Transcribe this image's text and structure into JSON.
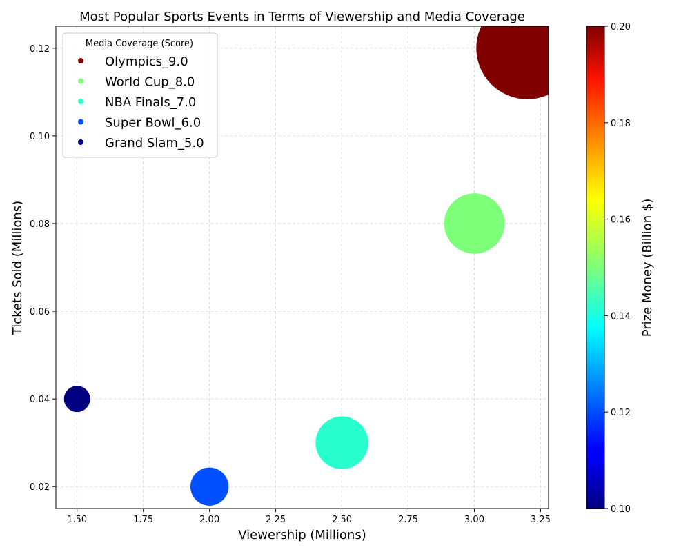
{
  "chart_data": {
    "type": "scatter",
    "title": "Most Popular Sports Events in Terms of Viewership and Media Coverage",
    "xlabel": "Viewership (Millions)",
    "ylabel": "Tickets Sold (Millions)",
    "xlim": [
      1.42,
      3.28
    ],
    "ylim": [
      0.015,
      0.125
    ],
    "xticks": [
      "1.50",
      "1.75",
      "2.00",
      "2.25",
      "2.50",
      "2.75",
      "3.00",
      "3.25"
    ],
    "xtick_values": [
      1.5,
      1.75,
      2.0,
      2.25,
      2.5,
      2.75,
      3.0,
      3.25
    ],
    "yticks": [
      "0.02",
      "0.04",
      "0.06",
      "0.08",
      "0.10",
      "0.12"
    ],
    "ytick_values": [
      0.02,
      0.04,
      0.06,
      0.08,
      0.1,
      0.12
    ],
    "grid": true,
    "legend": {
      "title": "Media Coverage (Score)",
      "placement": "top-left",
      "entries": [
        "Olympics_9.0",
        "World Cup_8.0",
        "NBA Finals_7.0",
        "Super Bowl_6.0",
        "Grand Slam_5.0"
      ]
    },
    "colorbar": {
      "label": "Prize Money (Billion $)",
      "range": [
        0.1,
        0.2
      ],
      "ticks": [
        "0.10",
        "0.12",
        "0.14",
        "0.16",
        "0.18",
        "0.20"
      ],
      "tick_values": [
        0.1,
        0.12,
        0.14,
        0.16,
        0.18,
        0.2
      ],
      "colormap": "jet"
    },
    "points": [
      {
        "event": "Olympics",
        "x": 3.2,
        "y": 0.12,
        "media_score": 9.0,
        "prize_money": 0.2,
        "color": "#800000"
      },
      {
        "event": "World Cup",
        "x": 3.0,
        "y": 0.08,
        "media_score": 8.0,
        "prize_money": 0.15,
        "color": "#7dff7a"
      },
      {
        "event": "NBA Finals",
        "x": 2.5,
        "y": 0.03,
        "media_score": 7.0,
        "prize_money": 0.14,
        "color": "#29ffce"
      },
      {
        "event": "Super Bowl",
        "x": 2.0,
        "y": 0.02,
        "media_score": 6.0,
        "prize_money": 0.12,
        "color": "#0050ff"
      },
      {
        "event": "Grand Slam",
        "x": 1.5,
        "y": 0.04,
        "media_score": 5.0,
        "prize_money": 0.1,
        "color": "#000080"
      }
    ]
  }
}
